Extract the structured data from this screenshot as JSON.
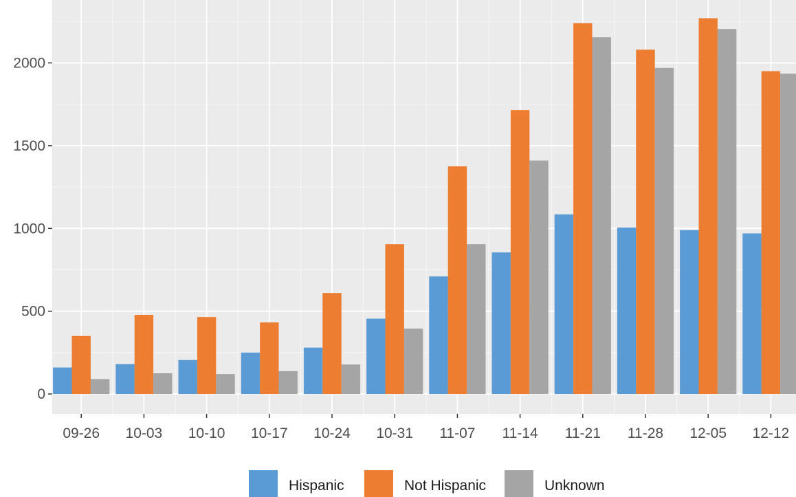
{
  "chart_data": {
    "type": "bar",
    "title": "",
    "xlabel": "",
    "ylabel": "",
    "categories": [
      "09-26",
      "10-03",
      "10-10",
      "10-17",
      "10-24",
      "10-31",
      "11-07",
      "11-14",
      "11-21",
      "11-28",
      "12-05",
      "12-12"
    ],
    "series": [
      {
        "name": "Hispanic",
        "color": "#5B9BD5",
        "values": [
          160,
          180,
          205,
          250,
          280,
          455,
          710,
          855,
          1085,
          1005,
          990,
          970
        ]
      },
      {
        "name": "Not Hispanic",
        "color": "#ED7D31",
        "values": [
          350,
          478,
          465,
          432,
          610,
          905,
          1375,
          1715,
          2240,
          2080,
          2270,
          1950
        ]
      },
      {
        "name": "Unknown",
        "color": "#A5A5A5",
        "values": [
          90,
          125,
          120,
          138,
          178,
          395,
          905,
          1410,
          2155,
          1970,
          2205,
          1935
        ]
      }
    ],
    "ylim": [
      -120,
      2380
    ],
    "yticks": [
      0,
      500,
      1000,
      1500,
      2000
    ],
    "grid": true,
    "legend_position": "bottom",
    "colors": {
      "panel": "#EBEBEB",
      "grid_major": "#FFFFFF",
      "axis_text": "#4D4D4D"
    }
  }
}
